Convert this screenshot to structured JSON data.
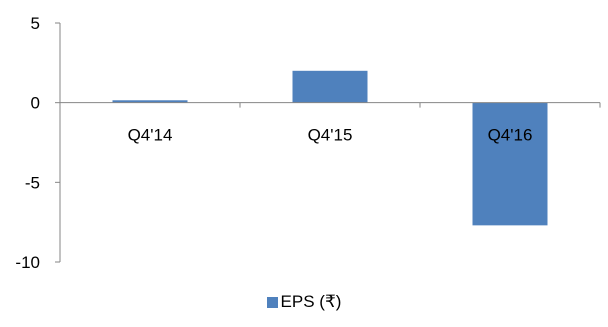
{
  "chart_data": {
    "type": "bar",
    "categories": [
      "Q4'14",
      "Q4'15",
      "Q4'16"
    ],
    "series": [
      {
        "name": "EPS (₹)",
        "values": [
          0.15,
          2.0,
          -7.7
        ],
        "color": "#4f81bd"
      }
    ],
    "ylim": [
      -10,
      5
    ],
    "yticks": [
      5,
      0,
      -5,
      -10
    ],
    "ytick_labels": [
      "5",
      "0",
      "-5",
      "-10"
    ],
    "grid": false,
    "legend": "bottom",
    "axis_color": "#868686"
  }
}
